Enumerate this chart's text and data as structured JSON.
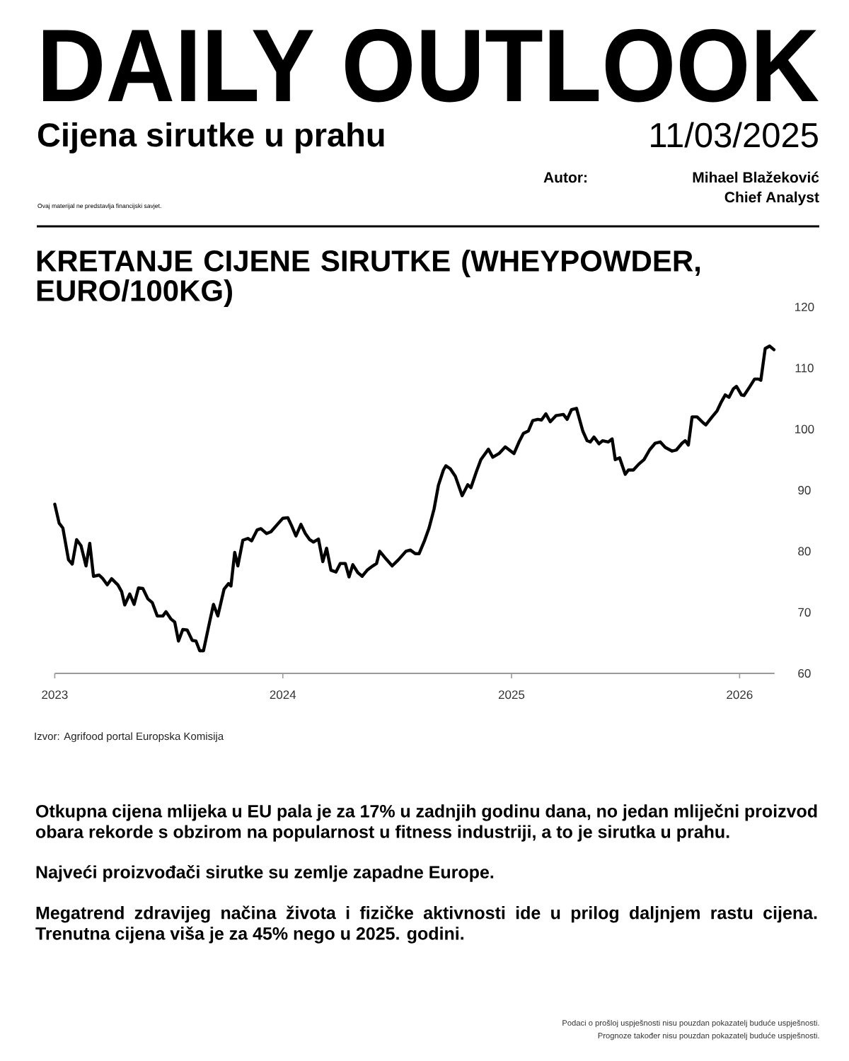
{
  "chart_data": {
    "type": "line",
    "title": "KRETANJE CIJENE SIRUTKE (WHEYPOWDER, EURO/100KG)",
    "annotations": [
      "DAILY OUTLOOK",
      "Cijena sirutke u prahu",
      "11/03/2025",
      "Ovaj materijal ne predstavlja financijski savjet.",
      "Autor:",
      "Mihael Blažeković",
      "Chief Analyst",
      "Izvor: Agrifood portal Europska Komisija",
      "Otkupna cijena mlijeka u EU pala je za 17% u zadnjih godinu dana, no jedan mliječni proizvod obara rekorde s obzirom na popularnost u fitness industriji, a to je sirutka u prahu.",
      "Najveći proizvođači sirutke su zemlje zapadne Europe.",
      "Megatrend zdravijeg načina života i fizičke aktivnosti ide u prilog daljnjem rastu cijena. Trenutna cijena viša je za 45% nego u 2025. godini.",
      "Podaci o prošloj uspješnosti nisu pouzdan pokazatelj buduće uspješnosti.",
      "Prognoze također nisu pouzdan pokazatelj buduće uspješnosti."
    ],
    "x": [
      "2023-01-01",
      "2023-01-08",
      "2023-01-14",
      "2023-01-23",
      "2023-01-29",
      "2023-02-05",
      "2023-02-12",
      "2023-02-20",
      "2023-02-26",
      "2023-03-04",
      "2023-03-13",
      "2023-03-19",
      "2023-03-26",
      "2023-04-02",
      "2023-04-12",
      "2023-04-18",
      "2023-04-23",
      "2023-05-01",
      "2023-05-08",
      "2023-05-15",
      "2023-05-22",
      "2023-05-30",
      "2023-06-06",
      "2023-06-14",
      "2023-06-23",
      "2023-06-28",
      "2023-07-06",
      "2023-07-12",
      "2023-07-18",
      "2023-07-25",
      "2023-08-01",
      "2023-08-09",
      "2023-08-15",
      "2023-08-21",
      "2023-08-27",
      "2023-09-06",
      "2023-09-12",
      "2023-09-19",
      "2023-09-29",
      "2023-10-06",
      "2023-10-10",
      "2023-10-16",
      "2023-10-21",
      "2023-10-29",
      "2023-11-06",
      "2023-11-12",
      "2023-11-21",
      "2023-11-27",
      "2023-12-06",
      "2023-12-13",
      "2023-12-25",
      "2024-01-01",
      "2024-01-09",
      "2024-01-15",
      "2024-01-22",
      "2024-01-30",
      "2024-02-06",
      "2024-02-13",
      "2024-02-19",
      "2024-02-27",
      "2024-03-05",
      "2024-03-11",
      "2024-03-18",
      "2024-03-26",
      "2024-04-02",
      "2024-04-10",
      "2024-04-16",
      "2024-04-22",
      "2024-04-30",
      "2024-05-07",
      "2024-05-15",
      "2024-05-24",
      "2024-05-30",
      "2024-06-04",
      "2024-06-12",
      "2024-06-24",
      "2024-07-04",
      "2024-07-16",
      "2024-07-23",
      "2024-07-31",
      "2024-08-06",
      "2024-08-15",
      "2024-08-22",
      "2024-08-30",
      "2024-09-06",
      "2024-09-14",
      "2024-09-18",
      "2024-09-25",
      "2024-10-03",
      "2024-10-14",
      "2024-10-23",
      "2024-10-28",
      "2024-11-06",
      "2024-11-13",
      "2024-11-25",
      "2024-12-02",
      "2024-12-12",
      "2024-12-22",
      "2025-01-05",
      "2025-01-13",
      "2025-01-20",
      "2025-01-28",
      "2025-02-04",
      "2025-02-12",
      "2025-02-18",
      "2025-02-25",
      "2025-03-04",
      "2025-03-13",
      "2025-03-25",
      "2025-03-31",
      "2025-04-07",
      "2025-04-15",
      "2025-04-25",
      "2025-05-02",
      "2025-05-07",
      "2025-05-13",
      "2025-05-21",
      "2025-05-27",
      "2025-06-05",
      "2025-06-11",
      "2025-06-16",
      "2025-06-23",
      "2025-07-02",
      "2025-07-07",
      "2025-07-15",
      "2025-07-24",
      "2025-08-01",
      "2025-08-10",
      "2025-08-19",
      "2025-08-27",
      "2025-09-04",
      "2025-09-15",
      "2025-09-22",
      "2025-10-01",
      "2025-10-06",
      "2025-10-11",
      "2025-10-17",
      "2025-10-25",
      "2025-11-04",
      "2025-11-08",
      "2025-11-18",
      "2025-11-26",
      "2025-12-03",
      "2025-12-09",
      "2025-12-15",
      "2025-12-22",
      "2025-12-27",
      "2026-01-04",
      "2026-01-08",
      "2026-01-17",
      "2026-01-25",
      "2026-01-31",
      "2026-02-04",
      "2026-02-11",
      "2026-02-18",
      "2026-02-25"
    ],
    "values": [
      87.7,
      84.6,
      83.8,
      78.6,
      77.9,
      81.9,
      80.9,
      77.6,
      81.3,
      75.9,
      76.1,
      75.5,
      74.5,
      75.5,
      74.5,
      73.4,
      71.2,
      73.0,
      71.3,
      74.0,
      73.9,
      72.2,
      71.6,
      69.4,
      69.4,
      70.1,
      68.9,
      68.4,
      65.3,
      67.2,
      67.1,
      65.4,
      65.3,
      63.7,
      63.7,
      68.5,
      71.3,
      69.4,
      73.8,
      74.7,
      74.3,
      79.8,
      77.6,
      81.8,
      82.1,
      81.7,
      83.5,
      83.7,
      82.9,
      83.2,
      84.6,
      85.4,
      85.5,
      84.2,
      82.5,
      84.4,
      82.9,
      81.9,
      81.5,
      82.0,
      78.3,
      80.5,
      76.9,
      76.6,
      78.0,
      78.0,
      75.8,
      77.8,
      76.5,
      75.9,
      76.9,
      77.6,
      78.0,
      80.0,
      79.0,
      77.6,
      78.6,
      80.0,
      80.2,
      79.6,
      79.6,
      81.8,
      83.8,
      86.9,
      90.8,
      93.3,
      94.0,
      93.5,
      92.3,
      89.1,
      90.9,
      90.4,
      93.1,
      95.0,
      96.7,
      95.4,
      96.0,
      97.1,
      96.0,
      97.9,
      99.3,
      99.7,
      101.4,
      101.6,
      101.5,
      102.5,
      101.2,
      102.2,
      102.4,
      101.6,
      103.2,
      103.4,
      99.7,
      98.1,
      97.9,
      98.7,
      97.6,
      98.1,
      97.9,
      98.4,
      95.0,
      95.3,
      92.6,
      93.3,
      93.3,
      94.3,
      95.0,
      96.6,
      97.7,
      97.9,
      97.0,
      96.4,
      96.6,
      97.7,
      98.1,
      97.4,
      102.0,
      102.0,
      101.0,
      100.7,
      102.0,
      103.0,
      104.5,
      105.6,
      105.2,
      106.6,
      107.0,
      105.6,
      105.5,
      106.9,
      108.2,
      108.2,
      108.0,
      113.2,
      113.6,
      113.0
    ],
    "color": "#000000",
    "xlim": [
      "2023-01-01",
      "2026-02-26"
    ],
    "xticks": [
      "2023",
      "2024",
      "2025",
      "2026"
    ],
    "ylim": [
      60,
      120
    ],
    "yticks": [
      60,
      70,
      80,
      90,
      100,
      110,
      120
    ]
  }
}
